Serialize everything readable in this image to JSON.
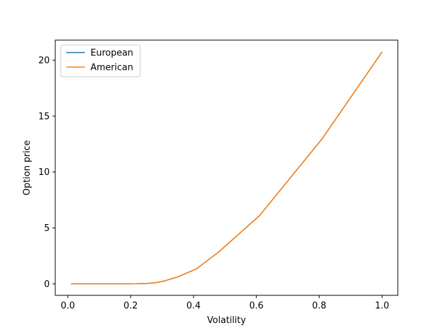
{
  "chart_data": {
    "type": "line",
    "xlabel": "Volatility",
    "ylabel": "Option price",
    "xlim": [
      -0.04,
      1.05
    ],
    "ylim": [
      -1.03,
      21.8
    ],
    "xticks": [
      0.0,
      0.2,
      0.4,
      0.6,
      0.8,
      1.0
    ],
    "xtick_labels": [
      "0.0",
      "0.2",
      "0.4",
      "0.6",
      "0.8",
      "1.0"
    ],
    "yticks": [
      0,
      5,
      10,
      15,
      20
    ],
    "ytick_labels": [
      "0",
      "5",
      "10",
      "15",
      "20"
    ],
    "legend": {
      "placement": "upper-left"
    },
    "grid": false,
    "series": [
      {
        "name": "European",
        "color": "#1f77b4",
        "x": [
          0.01,
          0.05,
          0.1,
          0.15,
          0.2,
          0.25,
          0.28,
          0.31,
          0.35,
          0.41,
          0.48,
          0.61,
          0.81,
          1.0
        ],
        "y": [
          0.0,
          0.0,
          0.0,
          0.0,
          0.0,
          0.03,
          0.1,
          0.28,
          0.62,
          1.35,
          2.85,
          6.1,
          13.0,
          20.75
        ]
      },
      {
        "name": "American",
        "color": "#ff7f0e",
        "x": [
          0.01,
          0.05,
          0.1,
          0.15,
          0.2,
          0.25,
          0.28,
          0.31,
          0.35,
          0.41,
          0.48,
          0.61,
          0.81,
          1.0
        ],
        "y": [
          0.0,
          0.0,
          0.0,
          0.0,
          0.0,
          0.03,
          0.1,
          0.28,
          0.62,
          1.35,
          2.85,
          6.1,
          13.0,
          20.75
        ]
      }
    ]
  }
}
